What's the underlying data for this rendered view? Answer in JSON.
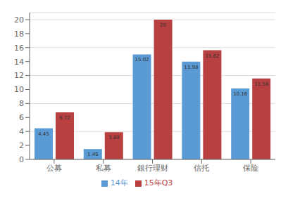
{
  "chart_data": {
    "type": "bar",
    "categories": [
      "公募",
      "私募",
      "銀行理财",
      "信托",
      "保险"
    ],
    "series": [
      {
        "name": "14年",
        "color": "#5b9bd5",
        "values": [
          4.45,
          1.49,
          15.02,
          13.98,
          10.16
        ]
      },
      {
        "name": "15年Q3",
        "color": "#b94040",
        "values": [
          6.72,
          3.89,
          20,
          15.62,
          11.58
        ]
      }
    ],
    "ylim": [
      0,
      21
    ],
    "yticks": [
      0,
      2,
      4,
      6,
      8,
      10,
      12,
      14,
      16,
      18,
      20
    ],
    "grid": true,
    "legend": "bottom",
    "data_labels": true
  }
}
